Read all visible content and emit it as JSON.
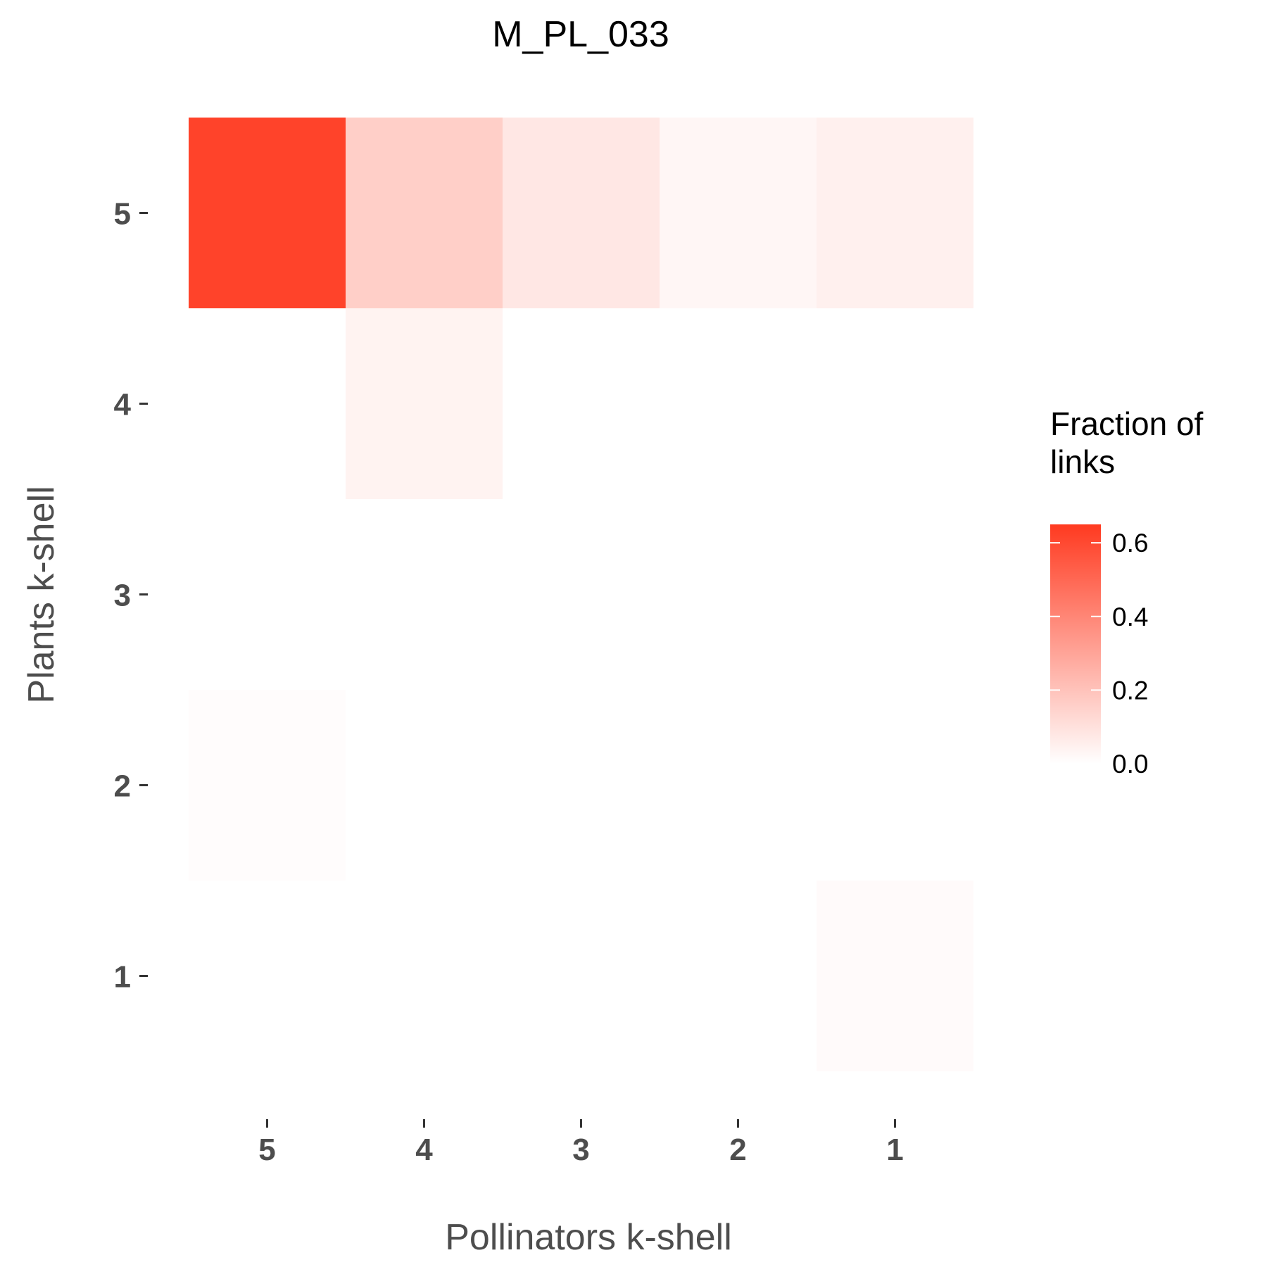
{
  "chart_data": {
    "type": "heatmap",
    "title": "M_PL_033",
    "xlabel": "Pollinators k-shell",
    "ylabel": "Plants k-shell",
    "x_categories": [
      "5",
      "4",
      "3",
      "2",
      "1"
    ],
    "y_categories": [
      "5",
      "4",
      "3",
      "2",
      "1"
    ],
    "cells": [
      {
        "x": "5",
        "y": "5",
        "value": 0.62
      },
      {
        "x": "4",
        "y": "5",
        "value": 0.16
      },
      {
        "x": "3",
        "y": "5",
        "value": 0.08
      },
      {
        "x": "2",
        "y": "5",
        "value": 0.03
      },
      {
        "x": "1",
        "y": "5",
        "value": 0.05
      },
      {
        "x": "4",
        "y": "4",
        "value": 0.04
      },
      {
        "x": "5",
        "y": "2",
        "value": 0.01
      },
      {
        "x": "1",
        "y": "1",
        "value": 0.015
      }
    ],
    "legend": {
      "title": "Fraction of links",
      "ticks": [
        "0.0",
        "0.2",
        "0.4",
        "0.6"
      ],
      "range": [
        0,
        0.65
      ],
      "position": "right",
      "low_color": "#ffffff",
      "high_color": "#ff3a20"
    },
    "grid": false
  }
}
